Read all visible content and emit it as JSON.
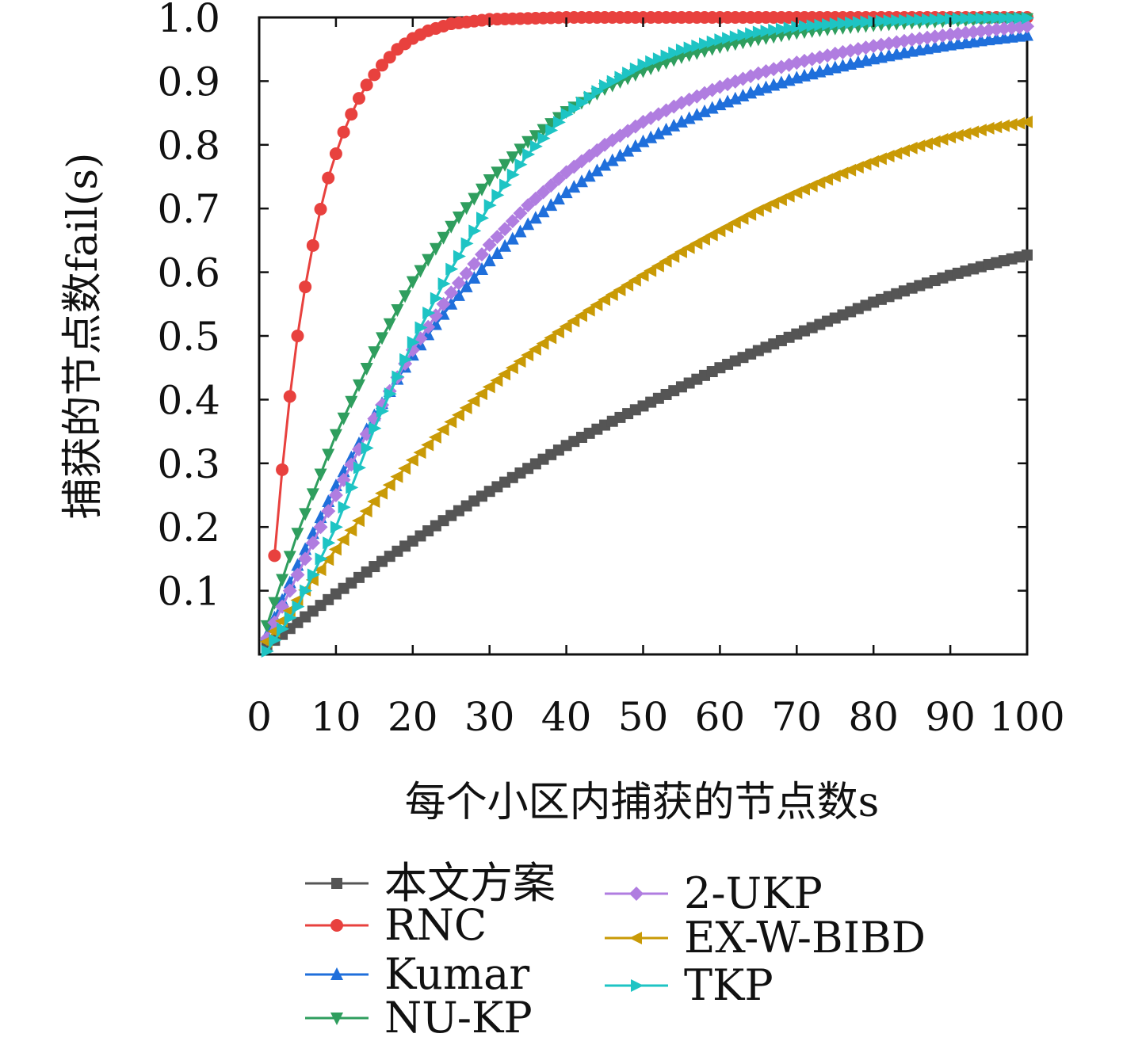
{
  "chart_data": {
    "type": "line",
    "xlabel": "每个小区内捕获的节点数s",
    "ylabel": "捕获的节点数fail(s)",
    "xlim": [
      0,
      100
    ],
    "ylim": [
      0,
      1.0
    ],
    "x_ticks": [
      "0",
      "10",
      "20",
      "30",
      "40",
      "50",
      "60",
      "70",
      "80",
      "90",
      "100"
    ],
    "y_ticks": [
      "0.1",
      "0.2",
      "0.3",
      "0.4",
      "0.5",
      "0.6",
      "0.7",
      "0.8",
      "0.9",
      "1.0"
    ],
    "grid": false,
    "legend_position": "bottom",
    "x": [
      1,
      5,
      10,
      15,
      20,
      25,
      30,
      35,
      40,
      45,
      50,
      55,
      60,
      65,
      70,
      75,
      80,
      85,
      90,
      95,
      100
    ],
    "series": [
      {
        "name": "本文方案",
        "color": "#555555",
        "marker": "square",
        "values": [
          0.013,
          0.05,
          0.095,
          0.138,
          0.178,
          0.218,
          0.256,
          0.292,
          0.328,
          0.36,
          0.39,
          0.42,
          0.45,
          0.477,
          0.503,
          0.528,
          0.553,
          0.575,
          0.595,
          0.612,
          0.627
        ]
      },
      {
        "name": "RNC",
        "color": "#e8413e",
        "marker": "circle",
        "x": [
          2,
          3,
          4,
          5,
          6,
          7,
          8,
          9,
          10,
          11,
          12,
          13,
          14,
          15,
          16,
          18,
          20,
          22,
          25,
          30,
          40,
          50,
          60,
          70,
          80,
          90,
          100
        ],
        "values": [
          0.155,
          0.29,
          0.405,
          0.5,
          0.577,
          0.642,
          0.699,
          0.748,
          0.786,
          0.82,
          0.848,
          0.873,
          0.894,
          0.91,
          0.925,
          0.95,
          0.967,
          0.979,
          0.99,
          0.997,
          1.0,
          1.0,
          1.0,
          1.0,
          1.0,
          1.0,
          1.0
        ]
      },
      {
        "name": "Kumar",
        "color": "#1f6fdb",
        "marker": "triangle-up",
        "values": [
          0.03,
          0.14,
          0.265,
          0.375,
          0.47,
          0.55,
          0.618,
          0.675,
          0.725,
          0.768,
          0.805,
          0.836,
          0.863,
          0.886,
          0.905,
          0.921,
          0.935,
          0.947,
          0.957,
          0.965,
          0.972
        ]
      },
      {
        "name": "NU-KP",
        "color": "#2f9e5e",
        "marker": "triangle-down",
        "values": [
          0.045,
          0.19,
          0.345,
          0.475,
          0.585,
          0.672,
          0.745,
          0.805,
          0.852,
          0.888,
          0.916,
          0.938,
          0.954,
          0.966,
          0.976,
          0.983,
          0.988,
          0.992,
          0.995,
          0.997,
          0.998
        ]
      },
      {
        "name": "2-UKP",
        "color": "#b07de0",
        "marker": "diamond",
        "values": [
          0.025,
          0.125,
          0.25,
          0.37,
          0.478,
          0.568,
          0.643,
          0.705,
          0.757,
          0.8,
          0.836,
          0.866,
          0.891,
          0.912,
          0.929,
          0.943,
          0.955,
          0.965,
          0.973,
          0.98,
          0.986
        ]
      },
      {
        "name": "EX-W-BIBD",
        "color": "#c99a06",
        "marker": "triangle-left",
        "values": [
          0.02,
          0.085,
          0.165,
          0.24,
          0.305,
          0.365,
          0.42,
          0.47,
          0.515,
          0.557,
          0.595,
          0.632,
          0.665,
          0.697,
          0.725,
          0.751,
          0.774,
          0.795,
          0.812,
          0.826,
          0.836
        ]
      },
      {
        "name": "TKP",
        "color": "#1ec4c4",
        "marker": "triangle-right",
        "values": [
          0.005,
          0.075,
          0.2,
          0.355,
          0.49,
          0.605,
          0.705,
          0.785,
          0.848,
          0.893,
          0.926,
          0.949,
          0.965,
          0.977,
          0.985,
          0.99,
          0.994,
          0.996,
          0.998,
          0.999,
          0.999
        ]
      }
    ]
  }
}
